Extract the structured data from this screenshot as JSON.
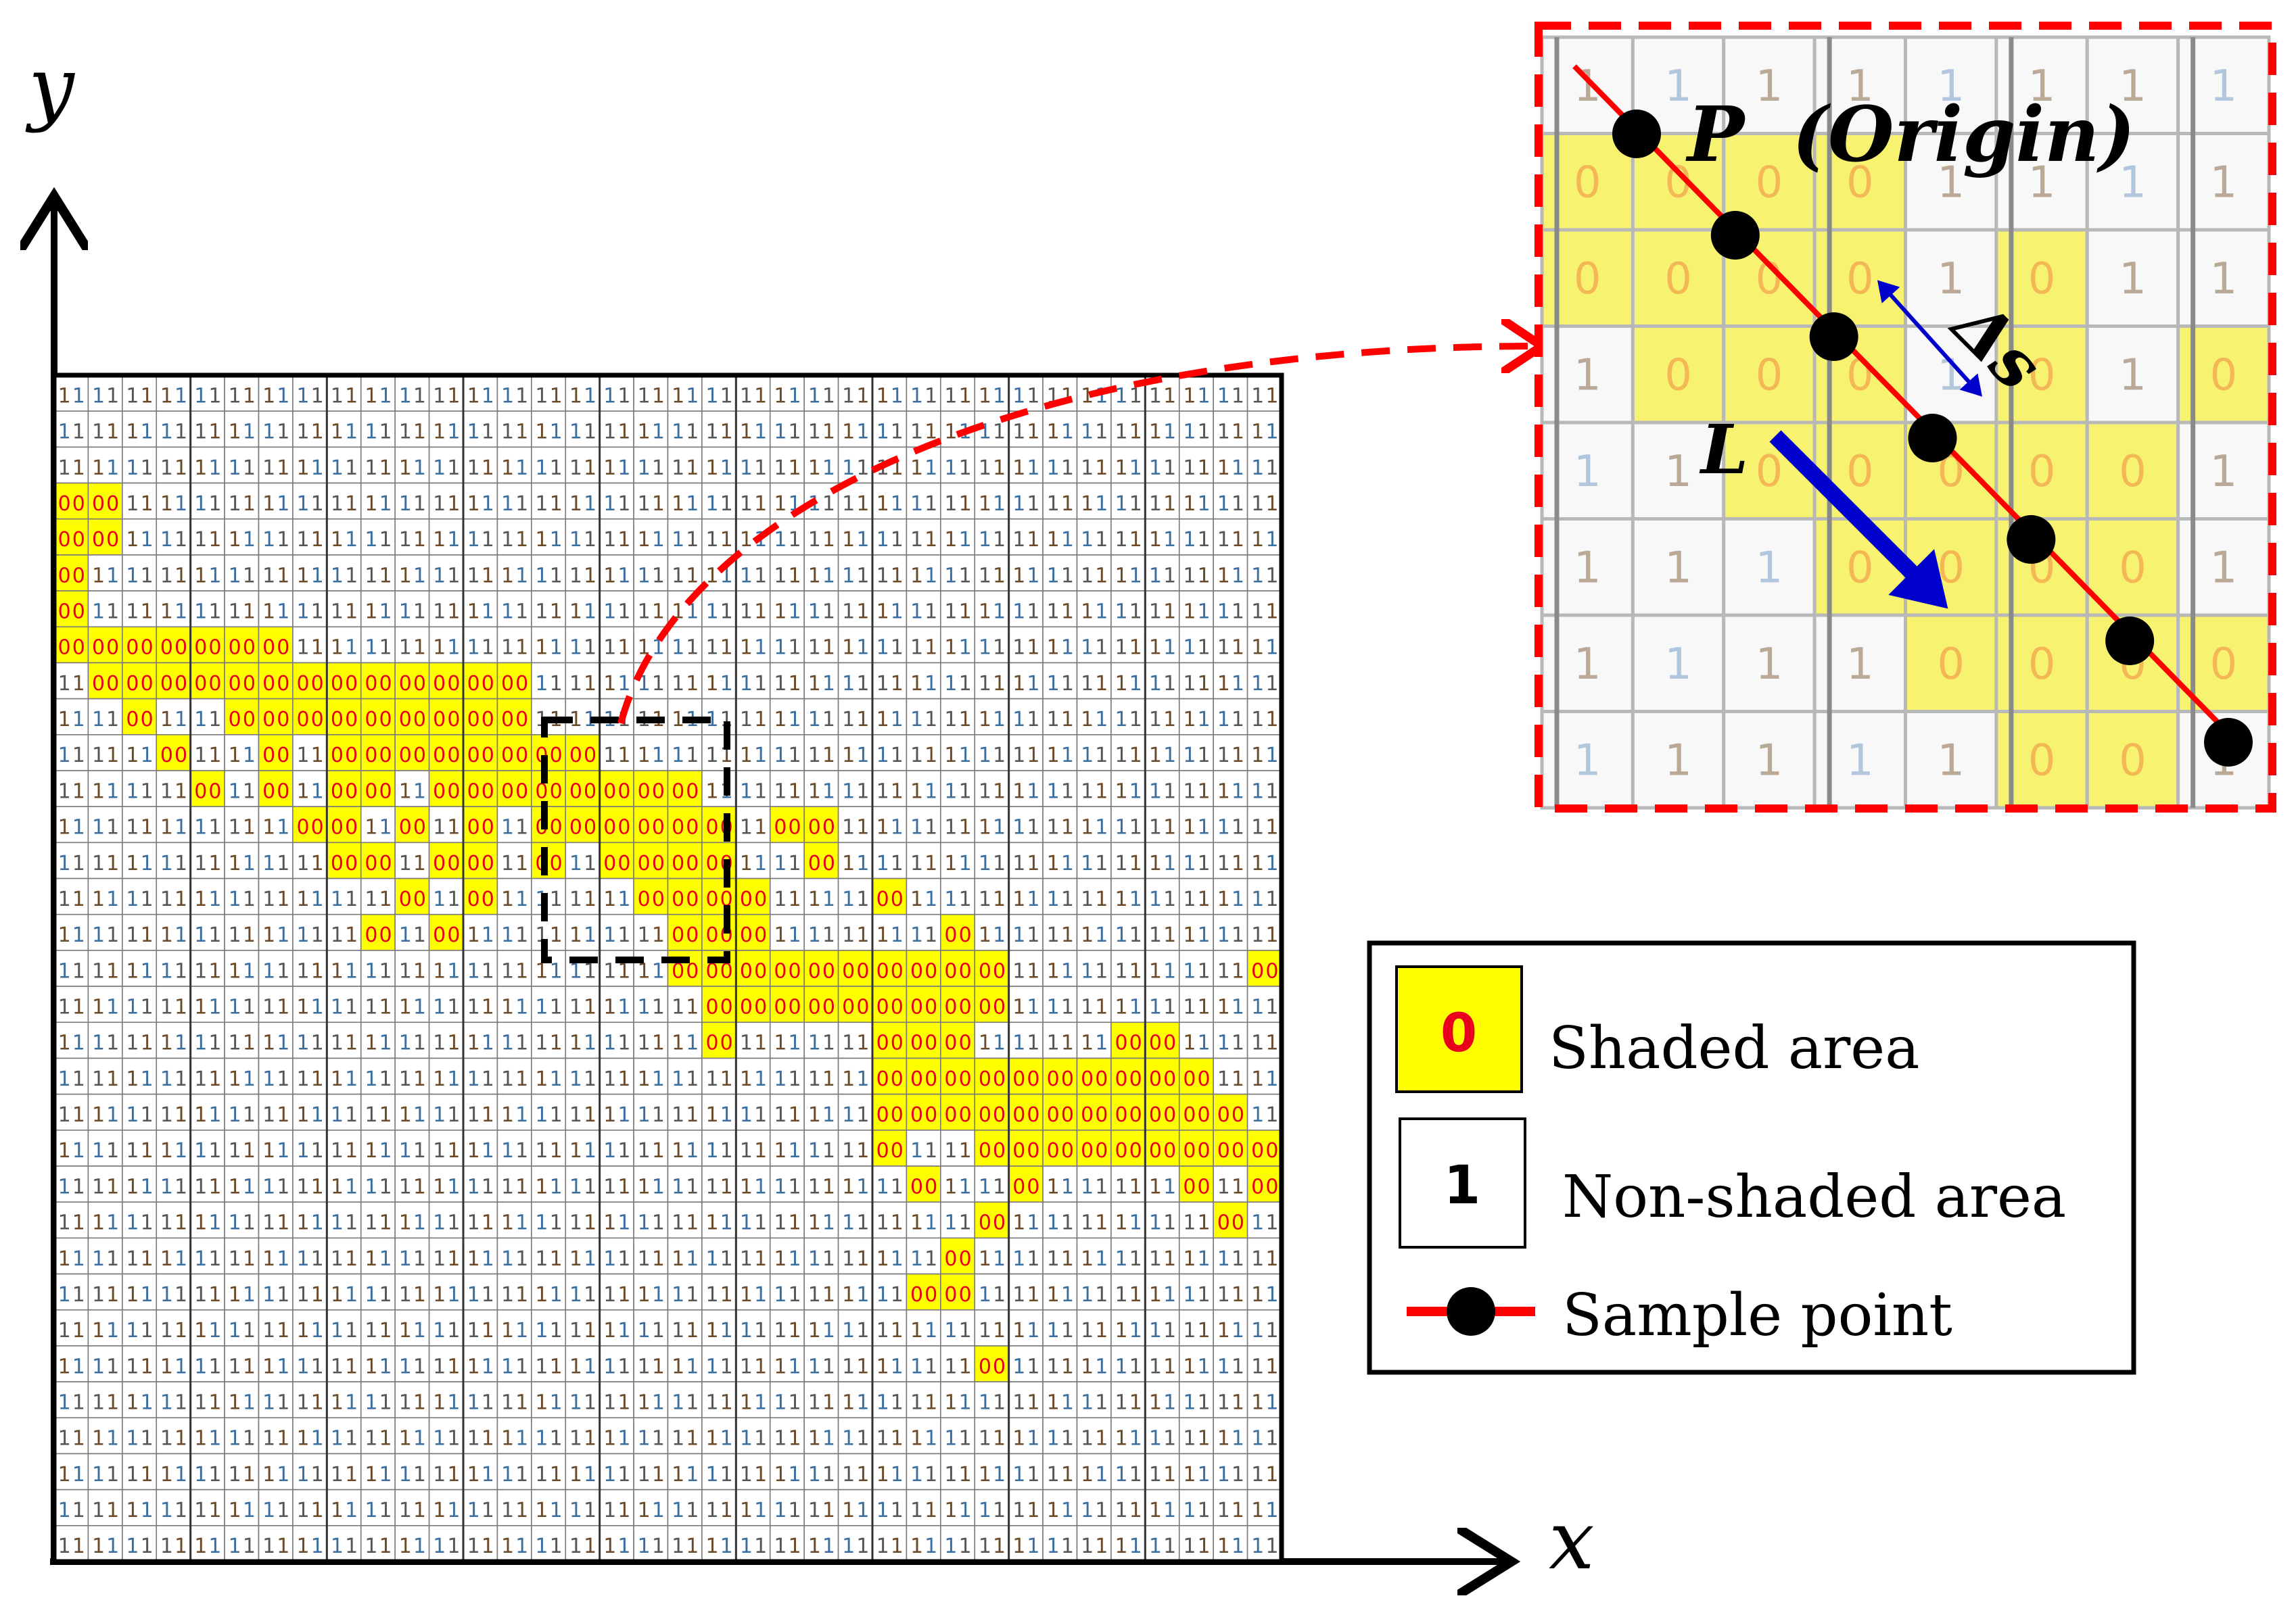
{
  "axes": {
    "x_label": "x",
    "y_label": "y"
  },
  "grid": {
    "cols": 36,
    "rows": 33,
    "shaded_value": "0",
    "nonshaded_value": "1",
    "shaded_cells": [
      [
        0,
        3
      ],
      [
        1,
        3
      ],
      [
        0,
        4
      ],
      [
        1,
        4
      ],
      [
        0,
        5
      ],
      [
        0,
        6
      ],
      [
        0,
        7
      ],
      [
        1,
        7
      ],
      [
        2,
        7
      ],
      [
        3,
        7
      ],
      [
        4,
        7
      ],
      [
        5,
        7
      ],
      [
        6,
        7
      ],
      [
        1,
        8
      ],
      [
        2,
        8
      ],
      [
        3,
        8
      ],
      [
        4,
        8
      ],
      [
        5,
        8
      ],
      [
        6,
        8
      ],
      [
        7,
        8
      ],
      [
        8,
        8
      ],
      [
        9,
        8
      ],
      [
        10,
        8
      ],
      [
        11,
        8
      ],
      [
        12,
        8
      ],
      [
        13,
        8
      ],
      [
        2,
        9
      ],
      [
        5,
        9
      ],
      [
        6,
        9
      ],
      [
        7,
        9
      ],
      [
        8,
        9
      ],
      [
        9,
        9
      ],
      [
        10,
        9
      ],
      [
        11,
        9
      ],
      [
        12,
        9
      ],
      [
        13,
        9
      ],
      [
        3,
        10
      ],
      [
        6,
        10
      ],
      [
        8,
        10
      ],
      [
        9,
        10
      ],
      [
        10,
        10
      ],
      [
        11,
        10
      ],
      [
        12,
        10
      ],
      [
        13,
        10
      ],
      [
        14,
        10
      ],
      [
        15,
        10
      ],
      [
        4,
        11
      ],
      [
        6,
        11
      ],
      [
        8,
        11
      ],
      [
        9,
        11
      ],
      [
        11,
        11
      ],
      [
        12,
        11
      ],
      [
        13,
        11
      ],
      [
        14,
        11
      ],
      [
        15,
        11
      ],
      [
        16,
        11
      ],
      [
        17,
        11
      ],
      [
        18,
        11
      ],
      [
        7,
        12
      ],
      [
        8,
        12
      ],
      [
        10,
        12
      ],
      [
        12,
        12
      ],
      [
        14,
        12
      ],
      [
        15,
        12
      ],
      [
        16,
        12
      ],
      [
        17,
        12
      ],
      [
        18,
        12
      ],
      [
        19,
        12
      ],
      [
        21,
        12
      ],
      [
        22,
        12
      ],
      [
        8,
        13
      ],
      [
        9,
        13
      ],
      [
        11,
        13
      ],
      [
        12,
        13
      ],
      [
        14,
        13
      ],
      [
        16,
        13
      ],
      [
        17,
        13
      ],
      [
        18,
        13
      ],
      [
        19,
        13
      ],
      [
        22,
        13
      ],
      [
        10,
        14
      ],
      [
        12,
        14
      ],
      [
        17,
        14
      ],
      [
        18,
        14
      ],
      [
        19,
        14
      ],
      [
        20,
        14
      ],
      [
        24,
        14
      ],
      [
        9,
        15
      ],
      [
        11,
        15
      ],
      [
        18,
        15
      ],
      [
        19,
        15
      ],
      [
        20,
        15
      ],
      [
        26,
        15
      ],
      [
        18,
        16
      ],
      [
        19,
        16
      ],
      [
        20,
        16
      ],
      [
        21,
        16
      ],
      [
        22,
        16
      ],
      [
        23,
        16
      ],
      [
        24,
        16
      ],
      [
        25,
        16
      ],
      [
        26,
        16
      ],
      [
        27,
        16
      ],
      [
        35,
        16
      ],
      [
        19,
        17
      ],
      [
        20,
        17
      ],
      [
        21,
        17
      ],
      [
        22,
        17
      ],
      [
        23,
        17
      ],
      [
        24,
        17
      ],
      [
        25,
        17
      ],
      [
        26,
        17
      ],
      [
        27,
        17
      ],
      [
        19,
        18
      ],
      [
        24,
        18
      ],
      [
        25,
        18
      ],
      [
        26,
        18
      ],
      [
        31,
        18
      ],
      [
        32,
        18
      ],
      [
        24,
        19
      ],
      [
        25,
        19
      ],
      [
        26,
        19
      ],
      [
        27,
        19
      ],
      [
        28,
        19
      ],
      [
        29,
        19
      ],
      [
        30,
        19
      ],
      [
        31,
        19
      ],
      [
        32,
        19
      ],
      [
        33,
        19
      ],
      [
        24,
        20
      ],
      [
        25,
        20
      ],
      [
        26,
        20
      ],
      [
        27,
        20
      ],
      [
        28,
        20
      ],
      [
        29,
        20
      ],
      [
        30,
        20
      ],
      [
        31,
        20
      ],
      [
        32,
        20
      ],
      [
        33,
        20
      ],
      [
        34,
        20
      ],
      [
        24,
        21
      ],
      [
        27,
        21
      ],
      [
        28,
        21
      ],
      [
        29,
        21
      ],
      [
        30,
        21
      ],
      [
        31,
        21
      ],
      [
        32,
        21
      ],
      [
        33,
        21
      ],
      [
        34,
        21
      ],
      [
        35,
        21
      ],
      [
        25,
        22
      ],
      [
        28,
        22
      ],
      [
        33,
        22
      ],
      [
        35,
        22
      ],
      [
        27,
        23
      ],
      [
        34,
        23
      ],
      [
        26,
        24
      ],
      [
        25,
        25
      ],
      [
        26,
        25
      ],
      [
        27,
        27
      ]
    ]
  },
  "zoom_grid": {
    "cols": 8,
    "rows": 8,
    "cells": [
      [
        "1",
        "1",
        "1",
        "1",
        "1",
        "1",
        "1",
        "1"
      ],
      [
        "0",
        "0",
        "0",
        "0",
        "1",
        "1",
        "1",
        "1"
      ],
      [
        "0",
        "0",
        "0",
        "0",
        "1",
        "0",
        "1",
        "1"
      ],
      [
        "1",
        "0",
        "0",
        "0",
        "1",
        "0",
        "1",
        "0"
      ],
      [
        "1",
        "1",
        "0",
        "0",
        "0",
        "0",
        "0",
        "1"
      ],
      [
        "1",
        "1",
        "1",
        "0",
        "0",
        "0",
        "0",
        "1"
      ],
      [
        "1",
        "1",
        "1",
        "1",
        "0",
        "0",
        "0",
        "0"
      ],
      [
        "1",
        "1",
        "1",
        "1",
        "1",
        "0",
        "0",
        "1"
      ]
    ]
  },
  "inset": {
    "point_label": "P",
    "origin_label": "(Origin)",
    "direction_label": "L",
    "step_label": "Δs"
  },
  "legend": {
    "shaded": {
      "symbol": "0",
      "label": "Shaded area"
    },
    "nonshaded": {
      "symbol": "1",
      "label": "Non-shaded area"
    },
    "sample": {
      "label": "Sample point"
    }
  },
  "colors": {
    "shaded_fill": "#ffff00",
    "shaded_text": "#e8001c",
    "sample_line": "#ff0000",
    "sample_point": "#000000",
    "direction_arrow": "#0000cc",
    "step_arrow": "#0000cc",
    "inset_border": "#ff0000",
    "selection_box": "#000000"
  }
}
